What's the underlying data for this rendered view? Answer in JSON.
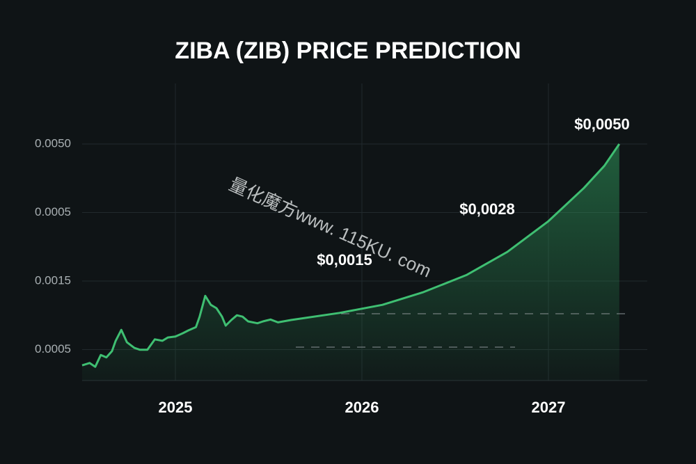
{
  "chart_data": {
    "type": "line",
    "title": "ZIBA (ZIB) PRICE PREDICTION",
    "y_axis_labels": [
      "0.0050",
      "0.0005",
      "0.0015",
      "0.0005"
    ],
    "xlim": [
      2024.5,
      2027.53
    ],
    "xticks": [
      2025,
      2026,
      2027
    ],
    "ylim": [
      0,
      0.00628
    ],
    "grid": true,
    "annotations": [
      "$0,0050",
      "$0,0028",
      "$0,0015"
    ],
    "watermark": "量化魔方www. 115KU. com",
    "series": [
      {
        "color": "#3fbf72",
        "x": [
          2024.5,
          2024.54,
          2024.57,
          2024.6,
          2024.63,
          2024.66,
          2024.68,
          2024.71,
          2024.74,
          2024.78,
          2024.81,
          2024.85,
          2024.89,
          2024.93,
          2024.96,
          2025.0,
          2025.04,
          2025.07,
          2025.11,
          2025.13,
          2025.16,
          2025.19,
          2025.22,
          2025.25,
          2025.27,
          2025.3,
          2025.33,
          2025.36,
          2025.39,
          2025.44,
          2025.47,
          2025.51,
          2025.55,
          2025.62,
          2025.88,
          2026.11,
          2026.33,
          2026.56,
          2026.78,
          2027.0,
          2027.19,
          2027.3,
          2027.38
        ],
        "values": [
          0.00032,
          0.00037,
          0.00029,
          0.00054,
          0.00049,
          0.00062,
          0.00084,
          0.00107,
          0.00081,
          0.00069,
          0.00065,
          0.00065,
          0.00087,
          0.00084,
          0.00091,
          0.00093,
          0.001,
          0.00106,
          0.00113,
          0.00135,
          0.00179,
          0.0016,
          0.00153,
          0.00135,
          0.00116,
          0.00128,
          0.00138,
          0.00135,
          0.00125,
          0.00121,
          0.00125,
          0.00129,
          0.00123,
          0.00128,
          0.00143,
          0.0016,
          0.00187,
          0.00223,
          0.00272,
          0.00337,
          0.00407,
          0.00454,
          0.005
        ]
      }
    ]
  }
}
